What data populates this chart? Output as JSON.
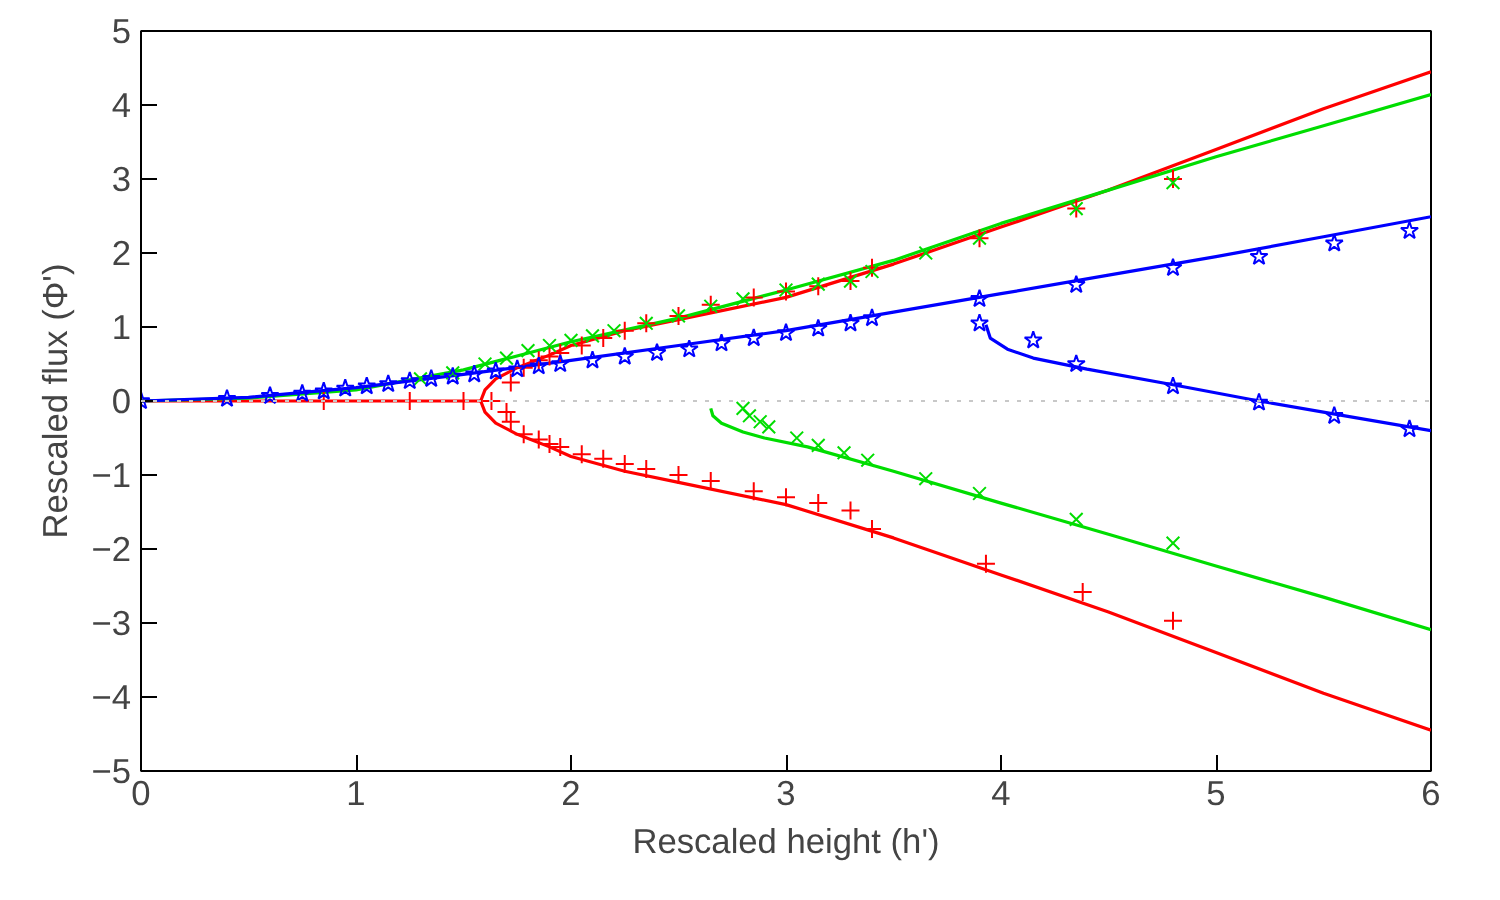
{
  "chart_data": {
    "type": "line",
    "xlabel": "Rescaled height (h')",
    "ylabel": "Rescaled flux (Φ')",
    "xlim": [
      0,
      6
    ],
    "ylim": [
      -5,
      5
    ],
    "xticks": [
      0,
      1,
      2,
      3,
      4,
      5,
      6
    ],
    "yticks": [
      -5,
      -4,
      -3,
      -2,
      -1,
      0,
      1,
      2,
      3,
      4,
      5
    ],
    "grid": false,
    "ref_lines": [
      {
        "axis": "y",
        "value": 0,
        "color": "#c8c8c8",
        "line_style": "dotted"
      }
    ],
    "series": [
      {
        "color": "#ff0000",
        "x": [
          0,
          0.5,
          1,
          1.3,
          1.58
        ],
        "values": [
          0,
          0,
          0,
          0,
          0
        ]
      },
      {
        "color": "#ff0000",
        "x": [
          1.58,
          1.6,
          1.65,
          1.75,
          1.9,
          2,
          2.25,
          2.5,
          3,
          3.5,
          4,
          4.5,
          5,
          5.5,
          6
        ],
        "values": [
          0,
          0.15,
          0.3,
          0.45,
          0.62,
          0.75,
          0.95,
          1.1,
          1.4,
          1.85,
          2.35,
          2.85,
          3.4,
          3.95,
          4.45
        ]
      },
      {
        "color": "#ff0000",
        "x": [
          1.58,
          1.6,
          1.65,
          1.75,
          1.9,
          2,
          2.25,
          2.5,
          3,
          3.5,
          4,
          4.5,
          5,
          5.5,
          6
        ],
        "values": [
          0,
          -0.15,
          -0.3,
          -0.45,
          -0.62,
          -0.75,
          -0.95,
          -1.1,
          -1.4,
          -1.85,
          -2.35,
          -2.85,
          -3.4,
          -3.95,
          -4.45
        ]
      },
      {
        "color": "#00dd00",
        "x": [
          0,
          0.5,
          1,
          1.5,
          2,
          2.5,
          3,
          3.5,
          4,
          4.5,
          5,
          5.5,
          6
        ],
        "values": [
          0,
          0.04,
          0.15,
          0.42,
          0.8,
          1.12,
          1.5,
          1.9,
          2.4,
          2.85,
          3.3,
          3.72,
          4.14
        ]
      },
      {
        "color": "#00dd00",
        "x": [
          2.65,
          2.66,
          2.7,
          2.8,
          2.9,
          3.1,
          3.5,
          4,
          4.5,
          5,
          5.5,
          6
        ],
        "values": [
          -0.1,
          -0.2,
          -0.3,
          -0.42,
          -0.5,
          -0.62,
          -0.95,
          -1.38,
          -1.8,
          -2.23,
          -2.65,
          -3.09
        ]
      },
      {
        "color": "#0000ff",
        "x": [
          0,
          0.5,
          1,
          1.5,
          2,
          2.5,
          3,
          3.5,
          4,
          4.5,
          5,
          5.5,
          6
        ],
        "values": [
          0,
          0.05,
          0.18,
          0.36,
          0.55,
          0.75,
          0.95,
          1.2,
          1.45,
          1.7,
          1.95,
          2.22,
          2.49
        ]
      },
      {
        "color": "#0000ff",
        "x": [
          3.93,
          3.95,
          4.03,
          4.15,
          4.4,
          4.8,
          5.2,
          5.6,
          6
        ],
        "values": [
          1.03,
          0.85,
          0.7,
          0.58,
          0.43,
          0.22,
          0.0,
          -0.2,
          -0.4
        ]
      },
      {
        "type": "scatter",
        "marker": "cross",
        "color": "#ff0000",
        "x": [
          0.85,
          1.25,
          1.5,
          1.63,
          1.72,
          1.78,
          1.85,
          1.9,
          1.95,
          2.05,
          2.15,
          2.25,
          2.35,
          2.5,
          2.65,
          2.85,
          3.0,
          3.15,
          3.3,
          3.4,
          3.9,
          4.35,
          4.8
        ],
        "values": [
          0,
          0,
          0,
          0,
          0.25,
          0.45,
          0.55,
          0.6,
          0.65,
          0.75,
          0.85,
          0.95,
          1.05,
          1.15,
          1.3,
          1.4,
          1.48,
          1.55,
          1.62,
          1.8,
          2.2,
          2.6,
          3.0
        ]
      },
      {
        "type": "scatter",
        "marker": "cross",
        "color": "#ff0000",
        "x": [
          1.7,
          1.72,
          1.78,
          1.85,
          1.9,
          1.95,
          2.05,
          2.15,
          2.25,
          2.35,
          2.5,
          2.65,
          2.85,
          3.0,
          3.15,
          3.3,
          3.4,
          3.93,
          4.38,
          4.8
        ],
        "values": [
          -0.15,
          -0.28,
          -0.45,
          -0.52,
          -0.58,
          -0.62,
          -0.72,
          -0.78,
          -0.85,
          -0.92,
          -1.0,
          -1.08,
          -1.22,
          -1.3,
          -1.38,
          -1.48,
          -1.73,
          -2.2,
          -2.58,
          -2.97
        ]
      },
      {
        "type": "scatter",
        "marker": "x",
        "color": "#00dd00",
        "x": [
          1.3,
          1.45,
          1.6,
          1.7,
          1.8,
          1.9,
          2.0,
          2.1,
          2.2,
          2.35,
          2.5,
          2.65,
          2.8,
          3.0,
          3.15,
          3.3,
          3.4,
          3.65,
          3.9,
          4.35,
          4.8
        ],
        "values": [
          0.3,
          0.38,
          0.5,
          0.58,
          0.68,
          0.75,
          0.82,
          0.88,
          0.95,
          1.05,
          1.15,
          1.28,
          1.38,
          1.5,
          1.58,
          1.62,
          1.75,
          2.0,
          2.2,
          2.6,
          2.95
        ]
      },
      {
        "type": "scatter",
        "marker": "x",
        "color": "#00dd00",
        "x": [
          2.8,
          2.83,
          2.88,
          2.92,
          3.05,
          3.15,
          3.27,
          3.38,
          3.65,
          3.9,
          4.35,
          4.8
        ],
        "values": [
          -0.1,
          -0.2,
          -0.28,
          -0.35,
          -0.5,
          -0.6,
          -0.7,
          -0.8,
          -1.05,
          -1.25,
          -1.6,
          -1.92
        ]
      },
      {
        "type": "scatter",
        "marker": "star",
        "color": "#0000ff",
        "x": [
          0,
          0.4,
          0.6,
          0.75,
          0.85,
          0.95,
          1.05,
          1.15,
          1.25,
          1.35,
          1.45,
          1.55,
          1.65,
          1.75,
          1.85,
          1.95,
          2.1,
          2.25,
          2.4,
          2.55,
          2.7,
          2.85,
          3.0,
          3.15,
          3.3,
          3.4,
          3.9,
          4.35,
          4.8,
          5.2,
          5.55,
          5.9
        ],
        "values": [
          0,
          0.03,
          0.07,
          0.1,
          0.13,
          0.17,
          0.2,
          0.23,
          0.27,
          0.3,
          0.33,
          0.36,
          0.4,
          0.43,
          0.47,
          0.5,
          0.55,
          0.6,
          0.65,
          0.7,
          0.78,
          0.85,
          0.92,
          0.98,
          1.05,
          1.12,
          1.38,
          1.57,
          1.8,
          1.95,
          2.13,
          2.3
        ]
      },
      {
        "type": "scatter",
        "marker": "star",
        "color": "#0000ff",
        "x": [
          3.9,
          4.15,
          4.35,
          4.8,
          5.2,
          5.55,
          5.9
        ],
        "values": [
          1.05,
          0.82,
          0.5,
          0.2,
          -0.02,
          -0.2,
          -0.38
        ]
      }
    ]
  }
}
